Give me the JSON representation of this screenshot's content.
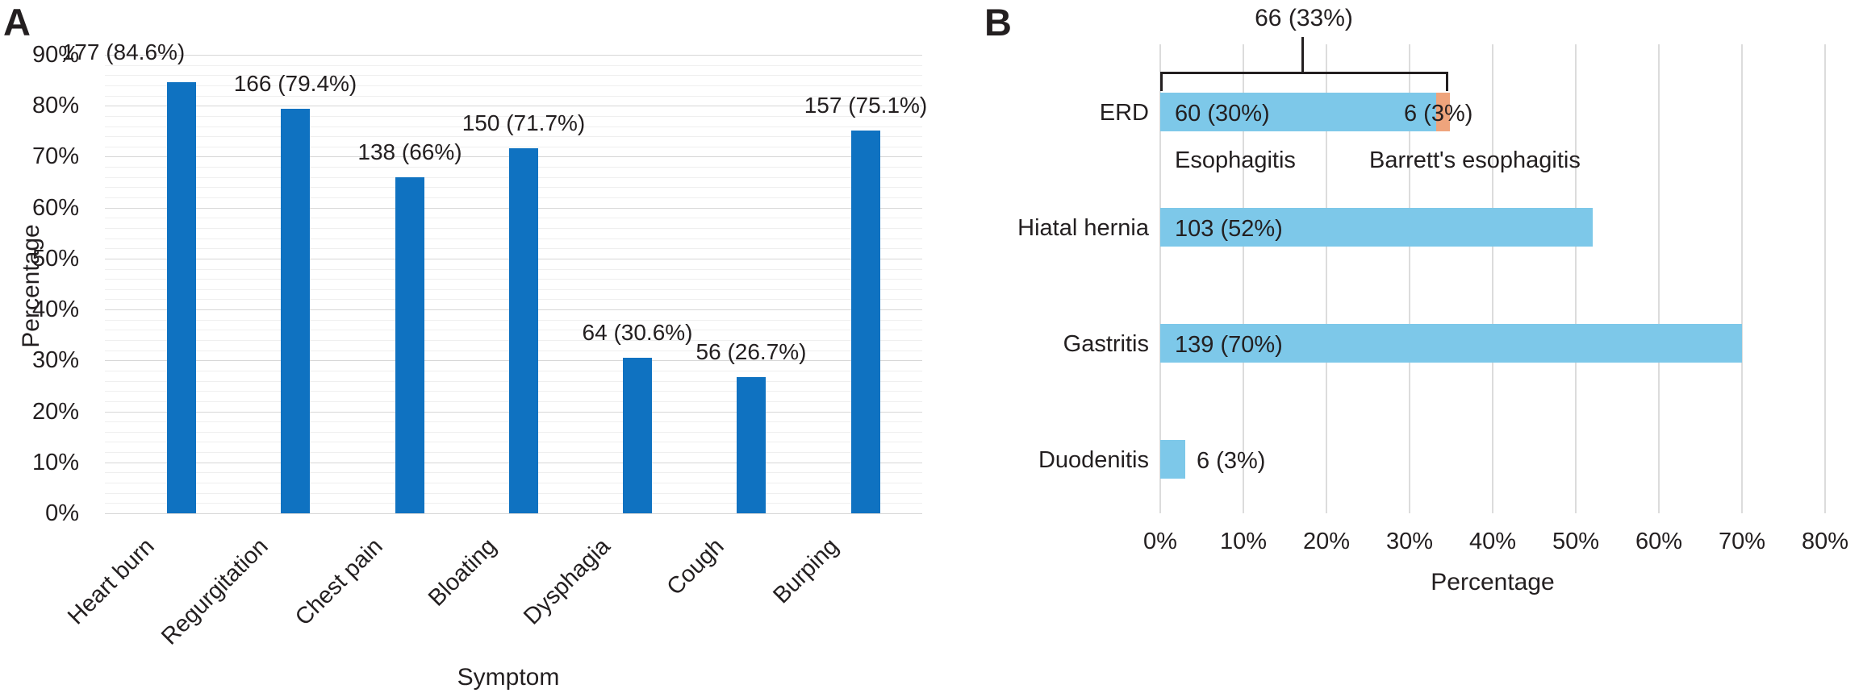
{
  "chart_data": [
    {
      "panel_label": "A",
      "type": "bar",
      "title": "",
      "categories": [
        "Heart burn",
        "Regurgitation",
        "Chest pain",
        "Bloating",
        "Dysphagia",
        "Cough",
        "Burping"
      ],
      "counts": [
        177,
        166,
        138,
        150,
        64,
        56,
        157
      ],
      "values": [
        84.6,
        79.4,
        66,
        71.7,
        30.6,
        26.7,
        75.1
      ],
      "data_labels": [
        "177 (84.6%)",
        "166 (79.4%)",
        "138 (66%)",
        "150 (71.7%)",
        "64 (30.6%)",
        "56 (26.7%)",
        "157 (75.1%)"
      ],
      "xlabel": "Symptom",
      "ylabel": "Percentage",
      "ylim": [
        0,
        90
      ],
      "ytick_labels": [
        "0%",
        "10%",
        "20%",
        "30%",
        "40%",
        "50%",
        "60%",
        "70%",
        "80%",
        "90%"
      ],
      "grid": "horizontal, major every 10%, minor every 2%",
      "legend": "none",
      "bar_color": "#0f72c1"
    },
    {
      "panel_label": "B",
      "type": "bar-horizontal-stacked",
      "title": "",
      "categories": [
        "ERD",
        "Hiatal hernia",
        "Gastritis",
        "Duodenitis"
      ],
      "series": [
        {
          "name": "Esophagitis",
          "color": "#7dc8e9",
          "counts": [
            60,
            103,
            139,
            6
          ],
          "values": [
            30,
            52,
            70,
            3
          ]
        },
        {
          "name": "Barrett's esophagitis",
          "color": "#efa47c",
          "counts": [
            6,
            0,
            0,
            0
          ],
          "values": [
            3,
            0,
            0,
            0
          ]
        }
      ],
      "bar_value_labels": [
        {
          "category": "ERD",
          "labels": [
            "60 (30%)",
            "6 (3%)"
          ]
        },
        {
          "category": "Hiatal hernia",
          "labels": [
            "103 (52%)"
          ]
        },
        {
          "category": "Gastritis",
          "labels": [
            "139 (70%)"
          ]
        },
        {
          "category": "Duodenitis",
          "labels": [
            "6 (3%)"
          ]
        }
      ],
      "segment_captions": [
        "Esophagitis",
        "Barrett's esophagitis"
      ],
      "bracket": {
        "label": "66 (33%)",
        "total_count": 66,
        "total_pct": 33,
        "spans": "ERD bar (Esophagitis + Barrett's esophagitis)"
      },
      "xlabel": "Percentage",
      "xlim": [
        0,
        80
      ],
      "xtick_labels": [
        "0%",
        "10%",
        "20%",
        "30%",
        "40%",
        "50%",
        "60%",
        "70%",
        "80%"
      ],
      "grid": "vertical, major every 10%",
      "legend": "none"
    }
  ]
}
